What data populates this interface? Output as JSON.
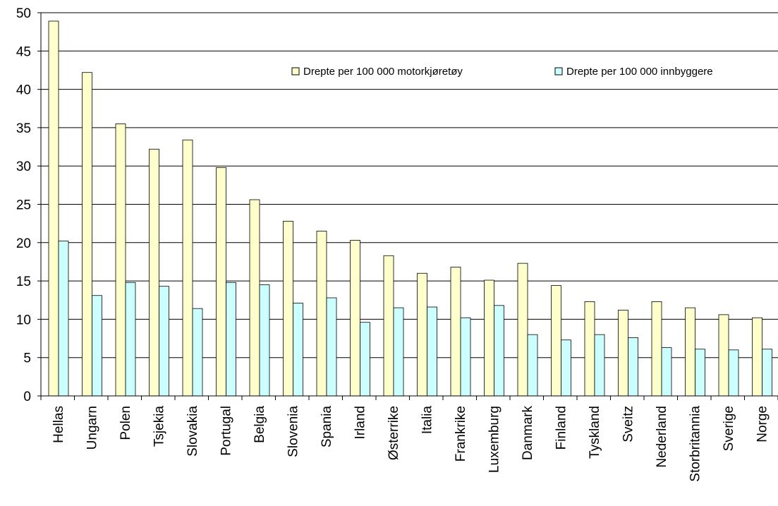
{
  "chart_data": {
    "type": "bar",
    "categories": [
      "Hellas",
      "Ungarn",
      "Polen",
      "Tsjekia",
      "Slovakia",
      "Portugal",
      "Belgia",
      "Slovenia",
      "Spania",
      "Irland",
      "Østerrike",
      "Italia",
      "Frankrike",
      "Luxemburg",
      "Danmark",
      "Finland",
      "Tyskland",
      "Sveitz",
      "Nederland",
      "Storbritannia",
      "Sverige",
      "Norge"
    ],
    "series": [
      {
        "name": "Drepte per 100 000 motorkjøretøy",
        "color": "#FFFFCC",
        "values": [
          48.9,
          42.2,
          35.5,
          32.2,
          33.4,
          29.8,
          25.6,
          22.8,
          21.5,
          20.3,
          18.3,
          16.0,
          16.8,
          15.1,
          17.3,
          14.4,
          12.3,
          11.2,
          12.3,
          11.5,
          10.6,
          10.2
        ]
      },
      {
        "name": "Drepte per 100 000 innbyggere",
        "color": "#CCFFFF",
        "values": [
          20.2,
          13.1,
          14.8,
          14.3,
          11.4,
          14.8,
          14.5,
          12.1,
          12.8,
          9.6,
          11.5,
          11.6,
          10.2,
          11.8,
          8.0,
          7.3,
          8.0,
          7.6,
          6.3,
          6.1,
          6.0,
          6.1
        ]
      }
    ],
    "yticks": [
      "0",
      "5",
      "10",
      "15",
      "20",
      "25",
      "30",
      "35",
      "40",
      "45",
      "50"
    ],
    "ylim": [
      0,
      50
    ],
    "grid": true,
    "legend_position": "top-right"
  }
}
